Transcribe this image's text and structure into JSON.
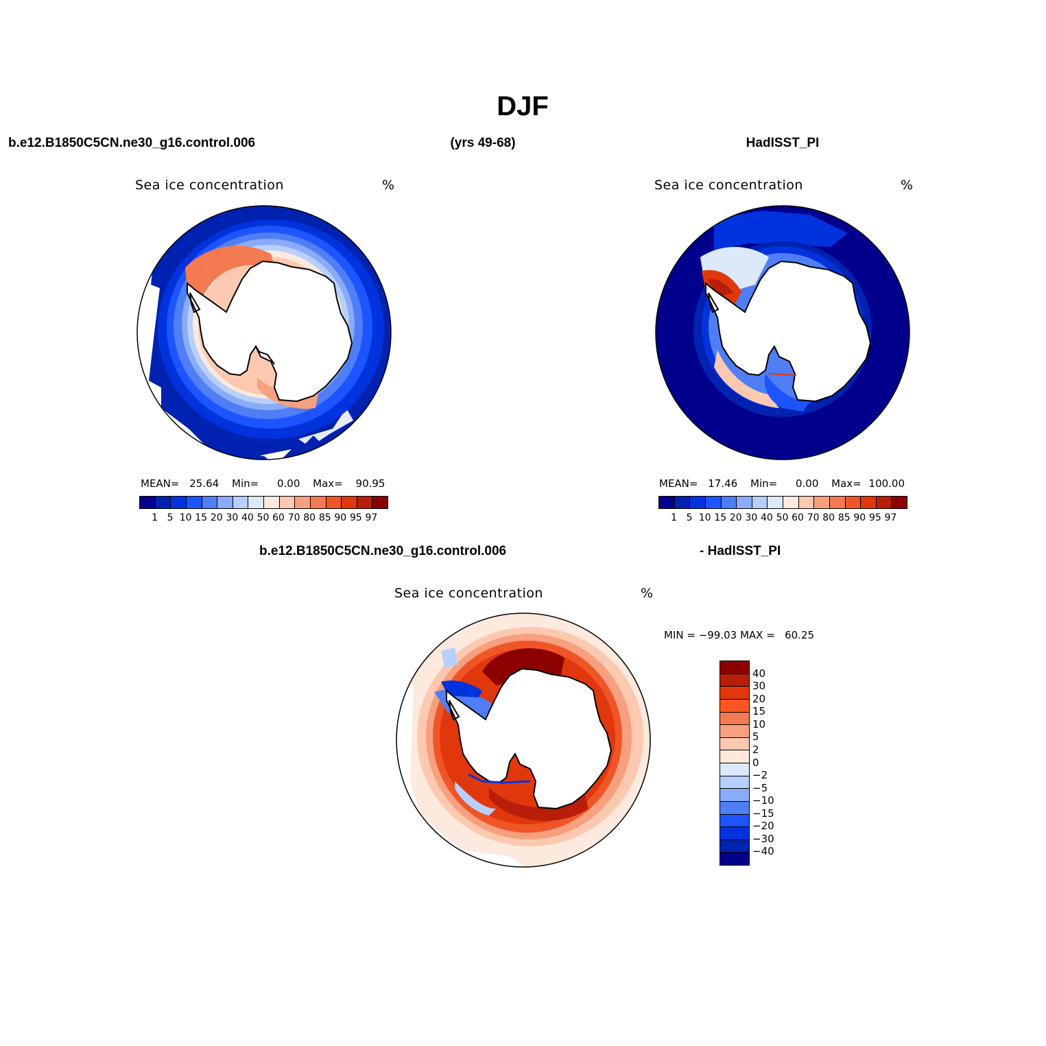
{
  "title": "DJF",
  "header": {
    "case_name": "b.e12.B1850C5CN.ne30_g16.control.006",
    "years": "(yrs 49-68)",
    "obs_name": "HadISST_PI",
    "diff_case": "b.e12.B1850C5CN.ne30_g16.control.006",
    "diff_obs": "- HadISST_PI"
  },
  "panels": {
    "model": {
      "title": "Sea ice concentration",
      "unit": "%",
      "mean_label": "MEAN=",
      "mean": "25.64",
      "min_label": "Min=",
      "min": "0.00",
      "max_label": "Max=",
      "max": "90.95"
    },
    "obs": {
      "title": "Sea ice concentration",
      "unit": "%",
      "mean_label": "MEAN=",
      "mean": "17.46",
      "min_label": "Min=",
      "min": "0.00",
      "max_label": "Max=",
      "max": "100.00"
    },
    "diff": {
      "title": "Sea ice concentration",
      "unit": "%",
      "minmax": "MIN = −99.03 MAX =   60.25"
    }
  },
  "colorbars": {
    "concentration": {
      "colors": [
        "#00008c",
        "#0022b0",
        "#0033dd",
        "#1c55ff",
        "#4f7ef7",
        "#8aabf9",
        "#b7cffb",
        "#dce9fb",
        "#fde9dd",
        "#fcc9b0",
        "#f6a07f",
        "#f47a52",
        "#f05528",
        "#e0380c",
        "#b81e08",
        "#8c0000"
      ],
      "labels": [
        "1",
        "5",
        "10",
        "15",
        "20",
        "30",
        "40",
        "50",
        "60",
        "70",
        "80",
        "85",
        "90",
        "95",
        "97"
      ]
    },
    "difference": {
      "colors": [
        "#8c0000",
        "#b81e08",
        "#e0380c",
        "#ff5522",
        "#f47a52",
        "#f6a07f",
        "#fcc9b0",
        "#fde9dd",
        "#dce9fb",
        "#b7cffb",
        "#8aabf9",
        "#4f7ef7",
        "#1c55ff",
        "#0033dd",
        "#0022b0",
        "#00008c"
      ],
      "labels": [
        "40",
        "30",
        "20",
        "15",
        "10",
        "5",
        "2",
        "0",
        "−2",
        "−5",
        "−10",
        "−15",
        "−20",
        "−30",
        "−40"
      ]
    }
  },
  "map_colors": {
    "land": "#ffffff",
    "coast": "#000000"
  }
}
